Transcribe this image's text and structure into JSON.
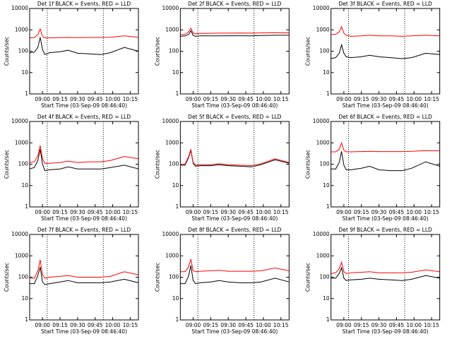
{
  "chart_data": [
    {
      "type": "line",
      "title": "Det 1f BLACK = Events, RED = LLD",
      "xlabel": "Start Time (03-Sep-09 08:46:40)",
      "ylabel": "Counts/sec",
      "log_y": true,
      "x": [
        "08:49",
        "08:53",
        "08:56",
        "08:58",
        "09:00",
        "09:02",
        "09:06",
        "09:15",
        "09:22",
        "09:30",
        "09:40",
        "09:50",
        "09:58",
        "10:10",
        "10:22"
      ],
      "markers": [
        "09:04",
        "09:52"
      ],
      "series": [
        {
          "name": "Events",
          "color": "#000000",
          "values": [
            85,
            90,
            150,
            450,
            120,
            70,
            85,
            95,
            110,
            80,
            75,
            70,
            85,
            150,
            100
          ]
        },
        {
          "name": "LLD",
          "color": "#ff0000",
          "values": [
            420,
            430,
            600,
            1100,
            500,
            420,
            420,
            430,
            440,
            430,
            440,
            440,
            450,
            520,
            450
          ]
        }
      ],
      "xlim": [
        "08:49",
        "10:22"
      ],
      "xticks": [
        "09:00",
        "09:15",
        "09:30",
        "09:45",
        "10:00",
        "10:15"
      ],
      "ylim": [
        1,
        10000
      ],
      "yticks": [
        1,
        10,
        100,
        1000,
        10000
      ]
    },
    {
      "type": "line",
      "title": "Det 2f BLACK = Events, RED = LLD",
      "xlabel": "Start Time (03-Sep-09 08:46:40)",
      "ylabel": "Counts/sec",
      "log_y": true,
      "x": [
        "08:49",
        "08:53",
        "08:56",
        "08:58",
        "09:00",
        "09:02",
        "09:06",
        "09:15",
        "09:22",
        "09:30",
        "09:40",
        "09:50",
        "09:58",
        "10:10",
        "10:22"
      ],
      "markers": [
        "09:04",
        "09:52"
      ],
      "series": [
        {
          "name": "Events",
          "color": "#000000",
          "values": [
            500,
            520,
            600,
            900,
            550,
            500,
            520,
            520,
            520,
            530,
            530,
            520,
            540,
            560,
            560
          ]
        },
        {
          "name": "LLD",
          "color": "#ff0000",
          "values": [
            600,
            620,
            800,
            1200,
            700,
            650,
            680,
            690,
            700,
            700,
            710,
            700,
            720,
            740,
            720
          ]
        }
      ],
      "xlim": [
        "08:49",
        "10:22"
      ],
      "xticks": [
        "09:00",
        "09:15",
        "09:30",
        "09:45",
        "10:00",
        "10:15"
      ],
      "ylim": [
        1,
        10000
      ],
      "yticks": [
        1,
        10,
        100,
        1000,
        10000
      ]
    },
    {
      "type": "line",
      "title": "Det 3f BLACK = Events, RED = LLD",
      "xlabel": "Start Time (03-Sep-09 08:46:40)",
      "ylabel": "Counts/sec",
      "log_y": true,
      "x": [
        "08:49",
        "08:53",
        "08:56",
        "08:58",
        "09:00",
        "09:02",
        "09:06",
        "09:15",
        "09:22",
        "09:30",
        "09:40",
        "09:50",
        "09:58",
        "10:10",
        "10:22"
      ],
      "markers": [
        "09:04",
        "09:52"
      ],
      "series": [
        {
          "name": "Events",
          "color": "#000000",
          "values": [
            45,
            50,
            80,
            200,
            80,
            55,
            50,
            55,
            65,
            55,
            50,
            45,
            50,
            80,
            70
          ]
        },
        {
          "name": "LLD",
          "color": "#ff0000",
          "values": [
            600,
            620,
            800,
            1400,
            700,
            550,
            500,
            520,
            560,
            520,
            520,
            500,
            520,
            560,
            520
          ]
        }
      ],
      "xlim": [
        "08:49",
        "10:22"
      ],
      "xticks": [
        "09:00",
        "09:15",
        "09:30",
        "09:45",
        "10:00",
        "10:15"
      ],
      "ylim": [
        1,
        10000
      ],
      "yticks": [
        1,
        10,
        100,
        1000,
        10000
      ]
    },
    {
      "type": "line",
      "title": "Det 4f BLACK = Events, RED = LLD",
      "xlabel": "Start Time (03-Sep-09 08:46:40)",
      "ylabel": "Counts/sec",
      "log_y": true,
      "x": [
        "08:49",
        "08:53",
        "08:56",
        "08:58",
        "09:00",
        "09:02",
        "09:06",
        "09:15",
        "09:22",
        "09:30",
        "09:40",
        "09:50",
        "09:58",
        "10:10",
        "10:22"
      ],
      "markers": [
        "09:04",
        "09:52"
      ],
      "series": [
        {
          "name": "Events",
          "color": "#000000",
          "values": [
            60,
            70,
            150,
            500,
            100,
            50,
            55,
            60,
            75,
            60,
            60,
            60,
            70,
            90,
            60
          ]
        },
        {
          "name": "LLD",
          "color": "#ff0000",
          "values": [
            120,
            130,
            250,
            750,
            180,
            110,
            110,
            120,
            140,
            120,
            130,
            130,
            150,
            230,
            180
          ]
        }
      ],
      "xlim": [
        "08:49",
        "10:22"
      ],
      "xticks": [
        "09:00",
        "09:15",
        "09:30",
        "09:45",
        "10:00",
        "10:15"
      ],
      "ylim": [
        1,
        10000
      ],
      "yticks": [
        1,
        10,
        100,
        1000,
        10000
      ]
    },
    {
      "type": "line",
      "title": "Det 5f BLACK = Events, RED = LLD",
      "xlabel": "Start Time (03-Sep-09 08:46:40)",
      "ylabel": "Counts/sec",
      "log_y": true,
      "x": [
        "08:49",
        "08:53",
        "08:56",
        "08:58",
        "09:00",
        "09:02",
        "09:06",
        "09:15",
        "09:22",
        "09:30",
        "09:40",
        "09:50",
        "09:58",
        "10:10",
        "10:22"
      ],
      "markers": [
        "09:04",
        "09:52"
      ],
      "series": [
        {
          "name": "Events",
          "color": "#000000",
          "values": [
            90,
            90,
            200,
            450,
            110,
            80,
            85,
            85,
            95,
            85,
            80,
            75,
            95,
            160,
            110
          ]
        },
        {
          "name": "LLD",
          "color": "#ff0000",
          "values": [
            100,
            100,
            220,
            500,
            120,
            90,
            95,
            95,
            105,
            95,
            90,
            85,
            105,
            180,
            120
          ]
        }
      ],
      "xlim": [
        "08:49",
        "10:22"
      ],
      "xticks": [
        "09:00",
        "09:15",
        "09:30",
        "09:45",
        "10:00",
        "10:15"
      ],
      "ylim": [
        1,
        10000
      ],
      "yticks": [
        1,
        10,
        100,
        1000,
        10000
      ]
    },
    {
      "type": "line",
      "title": "Det 6f BLACK = Events, RED = LLD",
      "xlabel": "Start Time (03-Sep-09 08:46:40)",
      "ylabel": "Counts/sec",
      "log_y": true,
      "x": [
        "08:49",
        "08:53",
        "08:56",
        "08:58",
        "09:00",
        "09:02",
        "09:06",
        "09:15",
        "09:22",
        "09:30",
        "09:40",
        "09:50",
        "09:58",
        "10:10",
        "10:22"
      ],
      "markers": [
        "09:04",
        "09:52"
      ],
      "series": [
        {
          "name": "Events",
          "color": "#000000",
          "values": [
            60,
            60,
            120,
            400,
            90,
            55,
            55,
            65,
            80,
            55,
            50,
            50,
            65,
            130,
            80
          ]
        },
        {
          "name": "LLD",
          "color": "#ff0000",
          "values": [
            380,
            380,
            500,
            1000,
            450,
            380,
            380,
            390,
            400,
            390,
            390,
            390,
            400,
            430,
            420
          ]
        }
      ],
      "xlim": [
        "08:49",
        "10:22"
      ],
      "xticks": [
        "09:00",
        "09:15",
        "09:30",
        "09:45",
        "10:00",
        "10:15"
      ],
      "ylim": [
        1,
        10000
      ],
      "yticks": [
        1,
        10,
        100,
        1000,
        10000
      ]
    },
    {
      "type": "line",
      "title": "Det 7f BLACK = Events, RED = LLD",
      "xlabel": "Start Time (03-Sep-09 08:46:40)",
      "ylabel": "Counts/sec",
      "log_y": true,
      "x": [
        "08:49",
        "08:53",
        "08:56",
        "08:58",
        "09:00",
        "09:02",
        "09:06",
        "09:15",
        "09:22",
        "09:30",
        "09:40",
        "09:50",
        "09:58",
        "10:10",
        "10:22"
      ],
      "markers": [
        "09:04",
        "09:52"
      ],
      "series": [
        {
          "name": "Events",
          "color": "#000000",
          "values": [
            50,
            50,
            120,
            300,
            60,
            45,
            50,
            60,
            70,
            55,
            55,
            55,
            60,
            80,
            55
          ]
        },
        {
          "name": "LLD",
          "color": "#ff0000",
          "values": [
            90,
            90,
            200,
            650,
            130,
            90,
            100,
            110,
            120,
            100,
            100,
            100,
            110,
            180,
            130
          ]
        }
      ],
      "xlim": [
        "08:49",
        "10:22"
      ],
      "xticks": [
        "09:00",
        "09:15",
        "09:30",
        "09:45",
        "10:00",
        "10:15"
      ],
      "ylim": [
        1,
        10000
      ],
      "yticks": [
        1,
        10,
        100,
        1000,
        10000
      ]
    },
    {
      "type": "line",
      "title": "Det 8f BLACK = Events, RED = LLD",
      "xlabel": "Start Time (03-Sep-09 08:46:40)",
      "ylabel": "Counts/sec",
      "log_y": true,
      "x": [
        "08:49",
        "08:53",
        "08:56",
        "08:58",
        "09:00",
        "09:02",
        "09:06",
        "09:15",
        "09:22",
        "09:30",
        "09:40",
        "09:50",
        "09:58",
        "10:10",
        "10:22"
      ],
      "markers": [
        "09:04",
        "09:52"
      ],
      "series": [
        {
          "name": "Events",
          "color": "#000000",
          "values": [
            50,
            50,
            110,
            350,
            70,
            50,
            55,
            60,
            70,
            60,
            55,
            55,
            60,
            90,
            60
          ]
        },
        {
          "name": "LLD",
          "color": "#ff0000",
          "values": [
            180,
            180,
            300,
            700,
            200,
            180,
            190,
            200,
            210,
            190,
            190,
            190,
            200,
            270,
            200
          ]
        }
      ],
      "xlim": [
        "08:49",
        "10:22"
      ],
      "xticks": [
        "09:00",
        "09:15",
        "09:30",
        "09:45",
        "10:00",
        "10:15"
      ],
      "ylim": [
        1,
        10000
      ],
      "yticks": [
        1,
        10,
        100,
        1000,
        10000
      ]
    },
    {
      "type": "line",
      "title": "Det 9f BLACK = Events, RED = LLD",
      "xlabel": "Start Time (03-Sep-09 08:46:40)",
      "ylabel": "Counts/sec",
      "log_y": true,
      "x": [
        "08:49",
        "08:53",
        "08:56",
        "08:58",
        "09:00",
        "09:02",
        "09:06",
        "09:15",
        "09:22",
        "09:30",
        "09:40",
        "09:50",
        "09:58",
        "10:10",
        "10:22"
      ],
      "markers": [
        "09:04",
        "09:52"
      ],
      "series": [
        {
          "name": "Events",
          "color": "#000000",
          "values": [
            90,
            90,
            150,
            280,
            90,
            70,
            75,
            80,
            90,
            80,
            75,
            70,
            80,
            120,
            90
          ]
        },
        {
          "name": "LLD",
          "color": "#ff0000",
          "values": [
            150,
            160,
            250,
            500,
            180,
            150,
            160,
            170,
            180,
            160,
            160,
            160,
            170,
            220,
            180
          ]
        }
      ],
      "xlim": [
        "08:49",
        "10:22"
      ],
      "xticks": [
        "09:00",
        "09:15",
        "09:30",
        "09:45",
        "10:00",
        "10:15"
      ],
      "ylim": [
        1,
        10000
      ],
      "yticks": [
        1,
        10,
        100,
        1000,
        10000
      ]
    }
  ]
}
